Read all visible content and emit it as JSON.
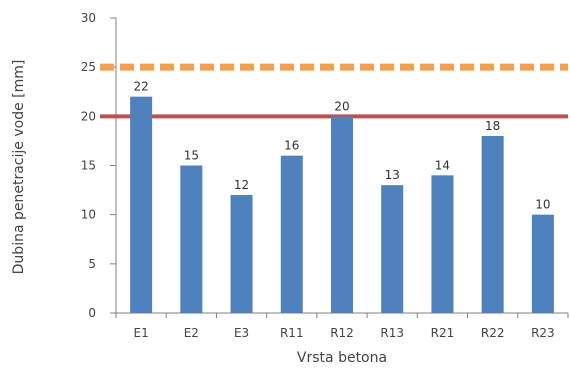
{
  "chart_data": {
    "type": "bar",
    "categories": [
      "E1",
      "E2",
      "E3",
      "R11",
      "R12",
      "R13",
      "R21",
      "R22",
      "R23"
    ],
    "values": [
      22,
      15,
      12,
      16,
      20,
      13,
      14,
      18,
      10
    ],
    "data_labels": [
      "22",
      "15",
      "12",
      "16",
      "20",
      "13",
      "14",
      "18",
      "10"
    ],
    "xlabel": "Vrsta betona",
    "ylabel": "Dubina penetracije vode [mm]",
    "ylim": [
      0,
      30
    ],
    "yticks": [
      0,
      5,
      10,
      15,
      20,
      25,
      30
    ],
    "grid": false,
    "legend": "none",
    "reference_lines": [
      {
        "value": 25,
        "style": "dashed",
        "color": "#F0A050"
      },
      {
        "value": 20,
        "style": "solid",
        "color": "#C0504D"
      }
    ],
    "bar_color": "#4F81BD"
  }
}
